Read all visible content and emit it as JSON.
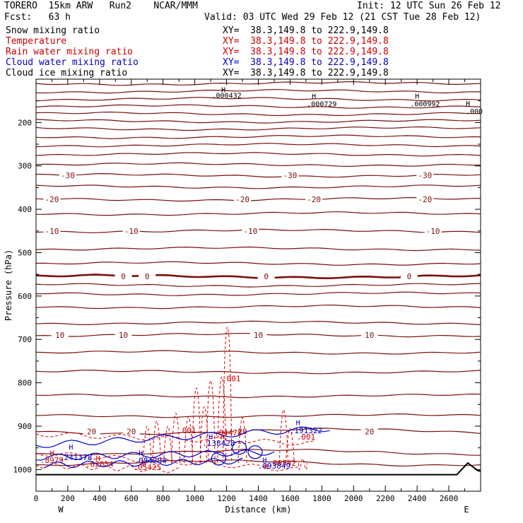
{
  "header": {
    "title_left": "TORERO  15km ARW   Run2    NCAR/MMM",
    "init": "Init: 12 UTC Sun 26 Feb 12",
    "fcst": "Fcst:   63 h",
    "valid": "Valid: 03 UTC Wed 29 Feb 12 (21 CST Tue 28 Feb 12)",
    "xy_text": "XY=  38.3,149.8 to 222.9,149.8"
  },
  "fields": [
    {
      "name": "Snow mixing ratio",
      "color": "#000000"
    },
    {
      "name": "Temperature",
      "color": "#cc0000"
    },
    {
      "name": "Rain water mixing ratio",
      "color": "#cc0000"
    },
    {
      "name": "Cloud water mixing ratio",
      "color": "#0000cc"
    },
    {
      "name": "Cloud ice mixing ratio",
      "color": "#000000"
    }
  ],
  "chart_data": {
    "type": "cross-section contour",
    "ylabel": "Pressure (hPa)",
    "xlabel": "Distance (km)",
    "x_range": [
      0,
      2800
    ],
    "y_range_hpa": [
      1050,
      100
    ],
    "x_ticks": [
      0,
      200,
      400,
      600,
      800,
      1000,
      1200,
      1400,
      1600,
      1800,
      2000,
      2200,
      2400,
      2600
    ],
    "y_ticks": [
      200,
      300,
      400,
      500,
      600,
      700,
      800,
      900,
      1000
    ],
    "x_end_left": "W",
    "x_end_right": "E",
    "temperature_contours": [
      {
        "label": "-30",
        "pressure": 322,
        "label_x": [
          200,
          1600,
          2450
        ]
      },
      {
        "label": "-20",
        "pressure": 377,
        "label_x": [
          100,
          1300,
          1750,
          2450
        ]
      },
      {
        "label": "-10",
        "pressure": 450,
        "label_x": [
          100,
          600,
          1350,
          2500
        ]
      },
      {
        "label": "0",
        "pressure": 555,
        "label_x": [
          550,
          700,
          1450,
          2350
        ]
      },
      {
        "label": "10",
        "pressure": 690,
        "label_x": [
          150,
          550,
          1400,
          2100
        ]
      },
      {
        "label": "20",
        "pressure": 912,
        "label_x": [
          350,
          600,
          1300,
          2100
        ]
      }
    ],
    "temperature_lines_pressure": [
      110,
      128,
      146,
      163,
      180,
      197,
      214,
      233,
      252,
      273,
      297,
      322,
      348,
      377,
      410,
      450,
      491,
      525,
      555,
      575,
      595,
      625,
      662,
      690,
      730,
      775,
      830,
      876,
      912,
      960,
      985
    ],
    "rain_labels": [
      {
        "text": ".001",
        "x": 1230,
        "p": 797
      },
      {
        "text": ".001",
        "x": 950,
        "p": 916
      },
      {
        "text": ".04478",
        "x": 1210,
        "p": 921
      },
      {
        "text": ".001",
        "x": 1700,
        "p": 931
      },
      {
        "text": ".8979",
        "x": 100,
        "p": 985
      },
      {
        "text": ".02054",
        "x": 400,
        "p": 994
      },
      {
        "text": ".05425",
        "x": 700,
        "p": 1001
      },
      {
        "text": ".06542",
        "x": 1550,
        "p": 991
      }
    ],
    "cloud_water_labels": [
      {
        "text": ".241378",
        "x": 250,
        "p": 978
      },
      {
        "text": ".084294",
        "x": 720,
        "p": 986
      },
      {
        "text": ".138428",
        "x": 1150,
        "p": 946
      },
      {
        "text": ".191322",
        "x": 1700,
        "p": 916
      },
      {
        "text": ".093849",
        "x": 1500,
        "p": 998
      }
    ],
    "cloud_ice_labels": [
      {
        "text": ".000432",
        "x": 1200,
        "p": 143
      },
      {
        "text": ".000729",
        "x": 1800,
        "p": 163
      },
      {
        "text": ".000992",
        "x": 2450,
        "p": 163
      },
      {
        "text": ".000",
        "x": 2760,
        "p": 180
      }
    ],
    "h_markers": [
      {
        "x": 1180,
        "p": 130,
        "color": "#000000"
      },
      {
        "x": 1750,
        "p": 145,
        "color": "#000000"
      },
      {
        "x": 2400,
        "p": 145,
        "color": "#000000"
      },
      {
        "x": 2720,
        "p": 162,
        "color": "#000000"
      },
      {
        "x": 100,
        "p": 968,
        "color": "#cc0000"
      },
      {
        "x": 220,
        "p": 954,
        "color": "#0000cc"
      },
      {
        "x": 390,
        "p": 980,
        "color": "#cc0000"
      },
      {
        "x": 660,
        "p": 968,
        "color": "#0000cc"
      },
      {
        "x": 680,
        "p": 992,
        "color": "#cc0000"
      },
      {
        "x": 1100,
        "p": 930,
        "color": "#0000cc"
      },
      {
        "x": 1175,
        "p": 930,
        "color": "#cc0000"
      },
      {
        "x": 1440,
        "p": 984,
        "color": "#0000cc"
      },
      {
        "x": 1650,
        "p": 898,
        "color": "#0000cc"
      },
      {
        "x": 1450,
        "p": 999,
        "color": "#cc0000"
      }
    ]
  }
}
